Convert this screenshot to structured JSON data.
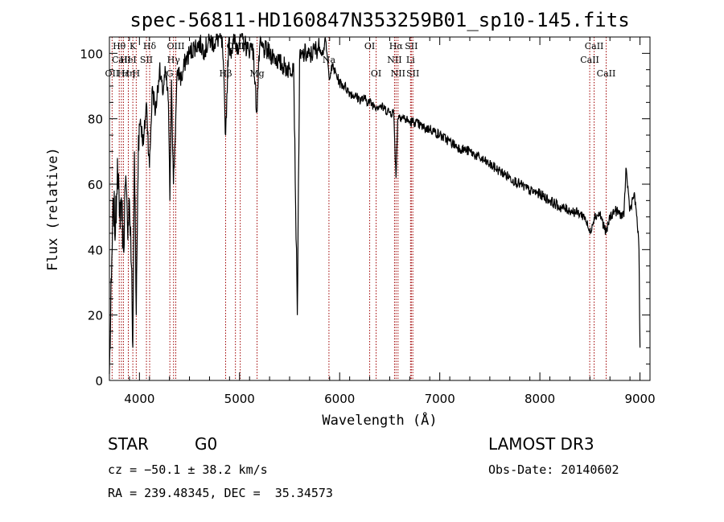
{
  "chart_data": {
    "type": "line",
    "title": "spec-56811-HD160847N353259B01_sp10-145.fits",
    "xlabel": "Wavelength (Å)",
    "ylabel": "Flux (relative)",
    "xlim": [
      3700,
      9100
    ],
    "ylim": [
      0,
      105
    ],
    "xticks": [
      4000,
      5000,
      6000,
      7000,
      8000,
      9000
    ],
    "yticks": [
      0,
      20,
      40,
      60,
      80,
      100
    ],
    "line_color": "#000000",
    "marker_color": "#a00000",
    "series": [
      {
        "name": "flux",
        "x": [
          3700,
          3720,
          3740,
          3760,
          3780,
          3800,
          3820,
          3840,
          3860,
          3880,
          3900,
          3920,
          3934,
          3950,
          3968,
          3990,
          4010,
          4040,
          4070,
          4100,
          4130,
          4160,
          4200,
          4230,
          4260,
          4290,
          4304,
          4320,
          4340,
          4380,
          4420,
          4460,
          4500,
          4550,
          4600,
          4650,
          4700,
          4750,
          4800,
          4830,
          4861,
          4890,
          4920,
          4950,
          4980,
          5010,
          5050,
          5090,
          5130,
          5172,
          5200,
          5250,
          5300,
          5350,
          5400,
          5450,
          5500,
          5540,
          5577,
          5600,
          5650,
          5700,
          5750,
          5800,
          5830,
          5860,
          5893,
          5930,
          6000,
          6050,
          6100,
          6150,
          6200,
          6250,
          6300,
          6350,
          6400,
          6450,
          6500,
          6540,
          6563,
          6580,
          6600,
          6650,
          6700,
          6750,
          6800,
          6850,
          6900,
          6950,
          7000,
          7100,
          7200,
          7300,
          7400,
          7500,
          7600,
          7700,
          7800,
          7900,
          8000,
          8100,
          8200,
          8300,
          8400,
          8450,
          8498,
          8542,
          8600,
          8662,
          8700,
          8750,
          8800,
          8840,
          8860,
          8900,
          8940,
          8970,
          8990,
          9000
        ],
        "values": [
          2,
          30,
          55,
          45,
          68,
          50,
          56,
          40,
          60,
          48,
          55,
          35,
          10,
          70,
          20,
          75,
          80,
          72,
          85,
          65,
          90,
          82,
          95,
          88,
          94,
          85,
          55,
          92,
          60,
          95,
          92,
          98,
          100,
          102,
          103,
          101,
          104,
          103,
          105,
          102,
          75,
          103,
          101,
          104,
          102,
          105,
          103,
          101,
          103,
          82,
          102,
          101,
          100,
          99,
          97,
          96,
          95,
          97,
          20,
          98,
          100,
          99,
          101,
          102,
          100,
          104,
          93,
          96,
          91,
          90,
          88,
          87,
          86,
          86,
          85,
          84,
          84,
          83,
          82,
          82,
          62,
          80,
          81,
          80,
          79,
          79,
          78,
          77,
          77,
          76,
          75,
          73,
          71,
          70,
          68,
          66,
          64,
          62,
          60,
          58,
          57,
          55,
          53,
          52,
          51,
          50,
          45,
          50,
          51,
          45,
          50,
          52,
          51,
          50,
          65,
          52,
          57,
          50,
          40,
          10
        ]
      }
    ],
    "lines": [
      {
        "name": "Hθ",
        "x": 3798,
        "row": 0
      },
      {
        "name": "CaII",
        "x": 3820,
        "row": 1
      },
      {
        "name": "OII",
        "x": 3727,
        "row": 2
      },
      {
        "name": "Hε",
        "x": 3840,
        "row": 2
      },
      {
        "name": "K",
        "x": 3934,
        "row": 0
      },
      {
        "name": "HeI",
        "x": 3889,
        "row": 1
      },
      {
        "name": "H",
        "x": 3968,
        "row": 2
      },
      {
        "name": "Hη",
        "x": 3889,
        "row": 2
      },
      {
        "name": "Hδ",
        "x": 4102,
        "row": 0
      },
      {
        "name": "SII",
        "x": 4070,
        "row": 1
      },
      {
        "name": "OIII",
        "x": 4363,
        "row": 0
      },
      {
        "name": "Hγ",
        "x": 4341,
        "row": 1
      },
      {
        "name": "G",
        "x": 4304,
        "row": 2
      },
      {
        "name": "OIII",
        "x": 4959,
        "row": 0
      },
      {
        "name": "OIII",
        "x": 5007,
        "row": 0
      },
      {
        "name": "Hβ",
        "x": 4861,
        "row": 2
      },
      {
        "name": "Mg",
        "x": 5175,
        "row": 2
      },
      {
        "name": "Na",
        "x": 5893,
        "row": 1
      },
      {
        "name": "OI",
        "x": 6300,
        "row": 0
      },
      {
        "name": "OI",
        "x": 6364,
        "row": 2
      },
      {
        "name": "Hα",
        "x": 6563,
        "row": 0
      },
      {
        "name": "SII",
        "x": 6716,
        "row": 0
      },
      {
        "name": "NII",
        "x": 6548,
        "row": 1
      },
      {
        "name": "Li",
        "x": 6708,
        "row": 1
      },
      {
        "name": "NII",
        "x": 6583,
        "row": 2
      },
      {
        "name": "SII",
        "x": 6731,
        "row": 2
      },
      {
        "name": "CaII",
        "x": 8542,
        "row": 0
      },
      {
        "name": "CaII",
        "x": 8498,
        "row": 1
      },
      {
        "name": "CaII",
        "x": 8662,
        "row": 2
      }
    ]
  },
  "info": {
    "object_type": "STAR",
    "subclass": "G0",
    "survey": "LAMOST DR3",
    "cz": "cz = −50.1 ± 38.2 km/s",
    "obs_date": "Obs-Date: 20140602",
    "coords": "RA = 239.48345, DEC =  35.34573"
  }
}
